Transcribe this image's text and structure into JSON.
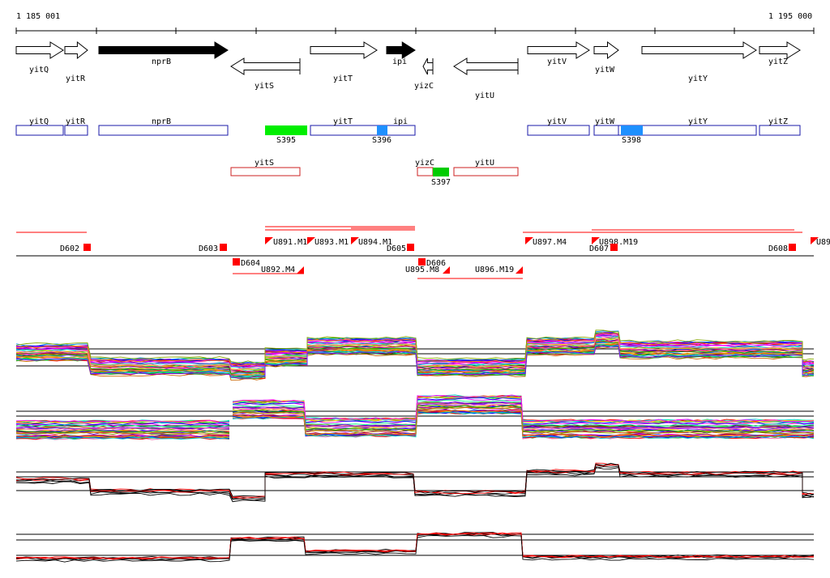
{
  "ruler": {
    "start_label": "1 185 001",
    "end_label": "1 195 000"
  },
  "gene_arrows": [
    {
      "name": "yitQ",
      "strand": "+",
      "filled": false
    },
    {
      "name": "yitR",
      "strand": "+",
      "filled": false
    },
    {
      "name": "nprB",
      "strand": "+",
      "filled": true
    },
    {
      "name": "yitS",
      "strand": "-",
      "filled": false
    },
    {
      "name": "yitT",
      "strand": "+",
      "filled": false
    },
    {
      "name": "ipi",
      "strand": "+",
      "filled": true
    },
    {
      "name": "yizC",
      "strand": "-",
      "filled": false
    },
    {
      "name": "yitU",
      "strand": "-",
      "filled": false
    },
    {
      "name": "yitV",
      "strand": "+",
      "filled": false
    },
    {
      "name": "yitW",
      "strand": "+",
      "filled": false
    },
    {
      "name": "yitY",
      "strand": "+",
      "filled": false
    },
    {
      "name": "yitZ",
      "strand": "+",
      "filled": false
    }
  ],
  "forward_boxes": [
    "yitQ",
    "yitR",
    "nprB",
    "yitT",
    "ipi",
    "yitV",
    "yitW",
    "yitY",
    "yitZ"
  ],
  "reverse_boxes": [
    "yitS",
    "yizC",
    "yitU"
  ],
  "segments": [
    {
      "label": "S395",
      "color": "#00ee00"
    },
    {
      "label": "S396",
      "color": "#1e90ff"
    },
    {
      "label": "S397",
      "color": "#00cc00"
    },
    {
      "label": "S398",
      "color": "#1e90ff"
    }
  ],
  "upper_features": [
    "U891.M1",
    "U893.M1",
    "U894.M1",
    "U897.M4",
    "U898.M19",
    "U89"
  ],
  "lower_features": [
    "U892.M4",
    "U895.M8",
    "U896.M19"
  ],
  "down_features": [
    "D602",
    "D603",
    "D604",
    "D605",
    "D606",
    "D607",
    "D608"
  ],
  "colors": {
    "forward": "#1a1aaa",
    "reverse": "#cc2222",
    "marker": "#ff0000"
  },
  "chart_data": {
    "type": "line",
    "panels": [
      "expression-forward-all",
      "expression-reverse-all",
      "expression-forward-avg",
      "expression-reverse-avg"
    ],
    "grid": true
  }
}
